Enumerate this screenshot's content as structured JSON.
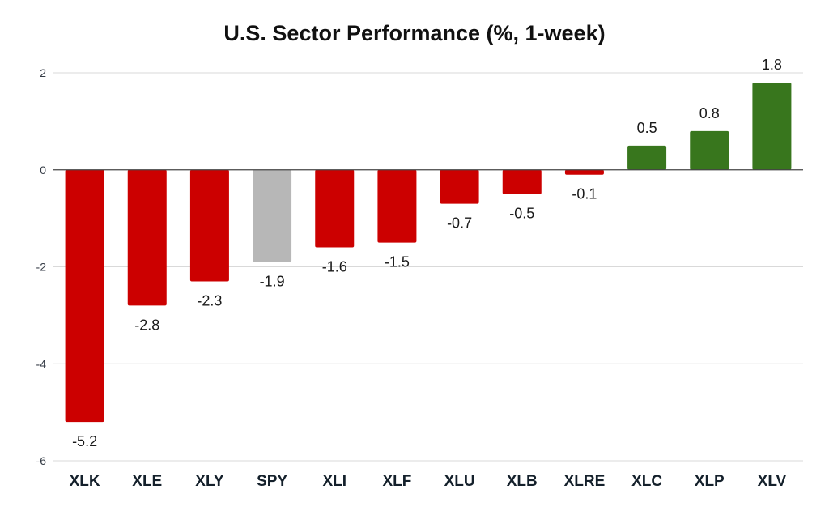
{
  "chart_data": {
    "type": "bar",
    "title": "U.S. Sector Performance (%, 1-week)",
    "xlabel": "",
    "ylabel": "",
    "categories": [
      "XLK",
      "XLE",
      "XLY",
      "SPY",
      "XLI",
      "XLF",
      "XLU",
      "XLB",
      "XLRE",
      "XLC",
      "XLP",
      "XLV"
    ],
    "values": [
      -5.2,
      -2.8,
      -2.3,
      -1.9,
      -1.6,
      -1.5,
      -0.7,
      -0.5,
      -0.1,
      0.5,
      0.8,
      1.8
    ],
    "data_labels": [
      "-5.2",
      "-2.8",
      "-2.3",
      "-1.9",
      "-1.6",
      "-1.5",
      "-0.7",
      "-0.5",
      "-0.1",
      "0.5",
      "0.8",
      "1.8"
    ],
    "ylim": [
      -6,
      2
    ],
    "yticks": [
      2,
      0,
      -2,
      -4,
      -6
    ],
    "ytick_labels": [
      "2",
      "0",
      "-2",
      "-4",
      "-6"
    ],
    "grid": true,
    "legend": "none",
    "colors": {
      "negative": "#cc0000",
      "positive": "#38761d",
      "benchmark": "#b7b7b7",
      "gridline": "#d9d9d9",
      "zero_axis": "#444444"
    },
    "benchmark_category": "SPY"
  }
}
